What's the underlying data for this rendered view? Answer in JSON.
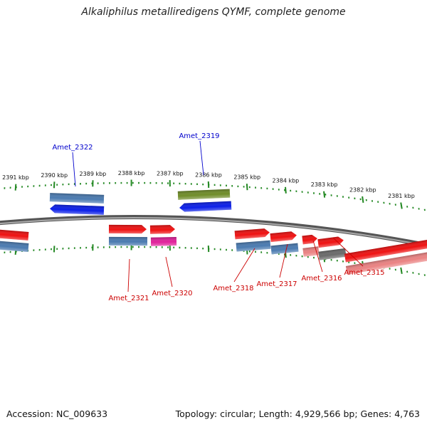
{
  "title": "Alkaliphilus metalliredigens QYMF, complete genome",
  "footer": {
    "accession": "Accession: NC_009633",
    "topology": "Topology: circular; Length: 4,929,566 bp; Genes: 4,763"
  },
  "colors": {
    "backbone": "#777777",
    "tick": "#228822",
    "label_forward": "#0000cc",
    "label_reverse": "#cc0000",
    "gene_blue": "#0b1fe8",
    "gene_steel": "#4a7ab0",
    "gene_olive": "#6f8c28",
    "gene_red": "#ee1111",
    "gene_magenta": "#e0219a",
    "gene_pink": "#ea8282",
    "gene_gray": "#6a6a6a"
  },
  "scale": {
    "unit": "kbp",
    "ticks": [
      {
        "kbp": 2391,
        "label": "2391 kbp"
      },
      {
        "kbp": 2390,
        "label": "2390 kbp"
      },
      {
        "kbp": 2389,
        "label": "2389 kbp"
      },
      {
        "kbp": 2388,
        "label": "2388 kbp"
      },
      {
        "kbp": 2387,
        "label": "2387 kbp"
      },
      {
        "kbp": 2386,
        "label": "2386 kbp"
      },
      {
        "kbp": 2385,
        "label": "2385 kbp"
      },
      {
        "kbp": 2384,
        "label": "2384 kbp"
      },
      {
        "kbp": 2383,
        "label": "2383 kbp"
      },
      {
        "kbp": 2382,
        "label": "2382 kbp"
      },
      {
        "kbp": 2381,
        "label": "2381 kbp"
      }
    ]
  },
  "features": [
    {
      "label": "Amet_2322",
      "strand": "forward"
    },
    {
      "label": "Amet_2319",
      "strand": "forward"
    },
    {
      "label": "Amet_2321",
      "strand": "reverse"
    },
    {
      "label": "Amet_2320",
      "strand": "reverse"
    },
    {
      "label": "Amet_2318",
      "strand": "reverse"
    },
    {
      "label": "Amet_2317",
      "strand": "reverse"
    },
    {
      "label": "Amet_2316",
      "strand": "reverse"
    },
    {
      "label": "Amet_2315",
      "strand": "reverse"
    }
  ]
}
